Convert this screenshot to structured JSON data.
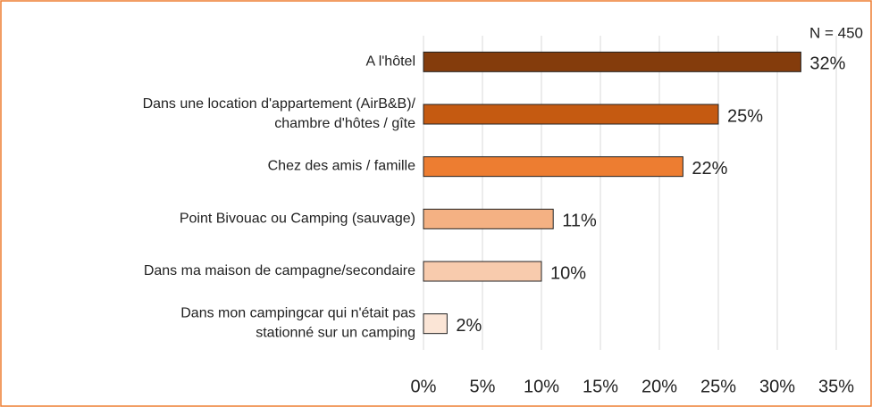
{
  "chart_data": {
    "type": "bar",
    "orientation": "horizontal",
    "annotation": "N = 450",
    "categories": [
      "A l'hôtel",
      "Dans une location d'appartement (AirB&B)/\nchambre d'hôtes / gîte",
      "Chez des amis / famille",
      "Point Bivouac ou Camping (sauvage)",
      "Dans ma maison de campagne/secondaire",
      "Dans mon campingcar qui n'était pas\nstationné sur un camping"
    ],
    "values": [
      32,
      25,
      22,
      11,
      10,
      2
    ],
    "value_labels": [
      "32%",
      "25%",
      "22%",
      "11%",
      "10%",
      "2%"
    ],
    "colors": [
      "#843c0c",
      "#c55a11",
      "#ed7d31",
      "#f4b183",
      "#f8cbad",
      "#fbe5d6"
    ],
    "xlim": [
      0,
      35
    ],
    "xticks": [
      {
        "value": 0,
        "label": "0%"
      },
      {
        "value": 5,
        "label": "5%"
      },
      {
        "value": 10,
        "label": "10%"
      },
      {
        "value": 15,
        "label": "15%"
      },
      {
        "value": 20,
        "label": "20%"
      },
      {
        "value": 25,
        "label": "25%"
      },
      {
        "value": 30,
        "label": "30%"
      },
      {
        "value": 35,
        "label": "35%"
      }
    ],
    "grid": true
  }
}
